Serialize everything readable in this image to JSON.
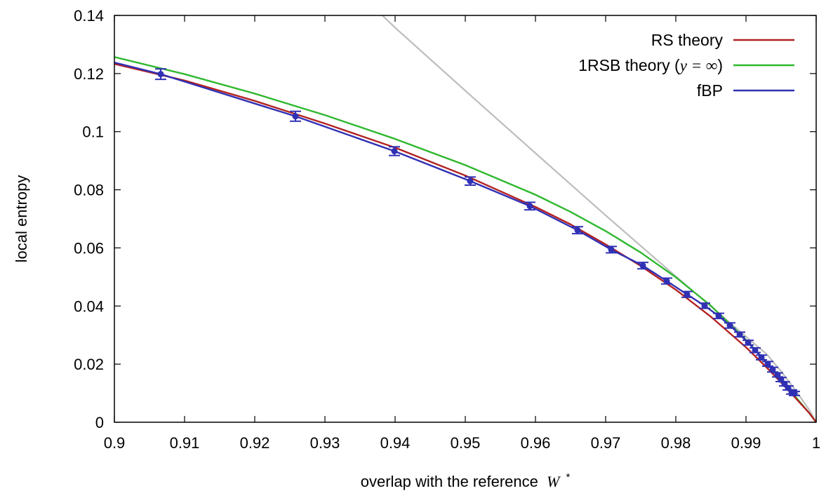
{
  "chart_data": {
    "type": "line",
    "xlabel": "overlap with the reference",
    "xlabel_math": "W",
    "xlabel_sup": "*",
    "ylabel": "local entropy",
    "xlim": [
      0.9,
      1.0
    ],
    "ylim": [
      0,
      0.14
    ],
    "xticks": [
      0.9,
      0.91,
      0.92,
      0.93,
      0.94,
      0.95,
      0.96,
      0.97,
      0.98,
      0.99,
      1
    ],
    "xtick_labels": [
      "0.9",
      "0.91",
      "0.92",
      "0.93",
      "0.94",
      "0.95",
      "0.96",
      "0.97",
      "0.98",
      "0.99",
      "1"
    ],
    "yticks": [
      0,
      0.02,
      0.04,
      0.06,
      0.08,
      0.1,
      0.12,
      0.14
    ],
    "ytick_labels": [
      "0",
      "0.02",
      "0.04",
      "0.06",
      "0.08",
      "0.1",
      "0.12",
      "0.14"
    ],
    "grid": false,
    "legend_position": "top-right",
    "series": [
      {
        "name": "RS theory",
        "color": "#b22222",
        "legend": true,
        "x": [
          0.9,
          0.91,
          0.92,
          0.93,
          0.94,
          0.95,
          0.96,
          0.965,
          0.97,
          0.975,
          0.98,
          0.985,
          0.99,
          0.993,
          0.995,
          0.997,
          0.999,
          1.0
        ],
        "y": [
          0.1233,
          0.1176,
          0.1106,
          0.1028,
          0.0945,
          0.0849,
          0.0741,
          0.0681,
          0.0612,
          0.0538,
          0.0456,
          0.0363,
          0.0258,
          0.0187,
          0.0137,
          0.0085,
          0.0032,
          0.0
        ]
      },
      {
        "name": "1RSB theory (",
        "name_math": "y = ∞",
        "name_suffix": ")",
        "color": "#2fb82f",
        "legend": true,
        "x": [
          0.9,
          0.91,
          0.92,
          0.93,
          0.94,
          0.95,
          0.96,
          0.965,
          0.97,
          0.975,
          0.98,
          0.985,
          0.99,
          0.993,
          0.995,
          0.997,
          0.999,
          1.0
        ],
        "y": [
          0.1257,
          0.1198,
          0.1131,
          0.1057,
          0.0975,
          0.0885,
          0.0783,
          0.0724,
          0.0658,
          0.0584,
          0.0499,
          0.0401,
          0.0284,
          0.0205,
          0.0148,
          0.0089,
          0.0032,
          0.0
        ]
      },
      {
        "name": "fBP",
        "color": "#3030b4",
        "legend": true,
        "marker": "circle",
        "error_bars": true,
        "x": [
          0.9,
          0.9066,
          0.9258,
          0.9399,
          0.9507,
          0.9592,
          0.966,
          0.9708,
          0.9753,
          0.9787,
          0.9816,
          0.9841,
          0.9861,
          0.9877,
          0.9891,
          0.9903,
          0.9913,
          0.9922,
          0.9931,
          0.9938,
          0.9945,
          0.995,
          0.9955,
          0.996,
          0.9965,
          0.9969
        ],
        "y": [
          0.1238,
          0.1198,
          0.1053,
          0.0933,
          0.083,
          0.0744,
          0.0661,
          0.0594,
          0.0539,
          0.0486,
          0.044,
          0.0401,
          0.0366,
          0.0333,
          0.0302,
          0.0274,
          0.0248,
          0.0223,
          0.0201,
          0.0181,
          0.0163,
          0.0147,
          0.0132,
          0.0118,
          0.0104,
          0.0099
        ],
        "err": [
          0,
          0.0018,
          0.0017,
          0.0015,
          0.0014,
          0.0013,
          0.0012,
          0.0011,
          0.0011,
          0.001,
          0.001,
          0.0009,
          0.0009,
          0.0009,
          0.0008,
          0.0008,
          0.0008,
          0.0008,
          0.0008,
          0.0008,
          0.0007,
          0.0007,
          0.0007,
          0.0007,
          0.0007,
          0.0007
        ]
      },
      {
        "name": "",
        "color": "#bdbdbd",
        "legend": false,
        "x": [
          0.935,
          0.94,
          0.95,
          0.96,
          0.97,
          0.98,
          0.99,
          0.993,
          0.995,
          0.997,
          0.999,
          1.0
        ],
        "y": [
          0.1474,
          0.1358,
          0.1141,
          0.0926,
          0.0712,
          0.0502,
          0.0295,
          0.0233,
          0.0175,
          0.0112,
          0.0043,
          0.0
        ]
      }
    ]
  }
}
